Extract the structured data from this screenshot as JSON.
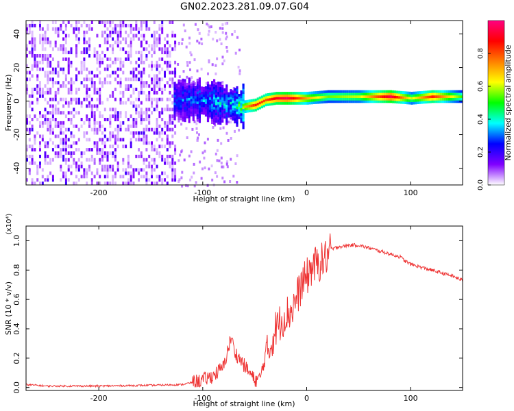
{
  "figure": {
    "title": "GN02.2023.281.09.07.G04"
  },
  "chart_data": [
    {
      "type": "heatmap",
      "xlabel": "Height of straight line (km)",
      "ylabel": "Frequency (Hz)",
      "xlim": [
        -270,
        150
      ],
      "ylim": [
        -50,
        48
      ],
      "xticks": [
        -200,
        -100,
        0,
        100
      ],
      "xtick_labels": [
        "-200",
        "-100",
        "0",
        "100"
      ],
      "yticks": [
        -40,
        -20,
        0,
        20,
        40
      ],
      "ytick_labels": [
        "-40",
        "-20",
        "0",
        "20",
        "40"
      ],
      "colorbar": {
        "label": "Normalized spectral amplitude",
        "range": [
          0,
          1
        ],
        "ticks": [
          0,
          0.2,
          0.4,
          0.6,
          0.8
        ],
        "tick_labels": [
          "0.0",
          "0.2",
          "0.4",
          "0.6",
          "0.8"
        ],
        "colors": [
          "#ffffff",
          "#8000ff",
          "#0000ff",
          "#00ffff",
          "#00ff00",
          "#ffff00",
          "#ff8000",
          "#ff0000",
          "#ff0080"
        ]
      },
      "ridge": {
        "x": [
          -125,
          -100,
          -80,
          -70,
          -60,
          -50,
          -40,
          -30,
          -20,
          0,
          20,
          50,
          80,
          100,
          120,
          150
        ],
        "freq": [
          0,
          0,
          -2,
          -3,
          -4,
          -3,
          0,
          1,
          1,
          1,
          2,
          2,
          2,
          1,
          2,
          2
        ],
        "amplitude": [
          0.35,
          0.4,
          0.45,
          0.5,
          0.7,
          0.85,
          0.8,
          0.9,
          0.95,
          0.7,
          0.55,
          0.6,
          0.95,
          0.6,
          0.85,
          0.5
        ]
      }
    },
    {
      "type": "line",
      "xlabel": "Height of straight line (km)",
      "ylabel": "SNR (10 * v/v)",
      "y_multiplier": "(x10⁴)",
      "xlim": [
        -270,
        150
      ],
      "ylim": [
        -0.02,
        1.1
      ],
      "xticks": [
        -200,
        -100,
        0,
        100
      ],
      "xtick_labels": [
        "-200",
        "-100",
        "0",
        "100"
      ],
      "yticks": [
        0,
        0.2,
        0.4,
        0.6,
        0.8,
        1.0
      ],
      "ytick_labels": [
        "0.0",
        "0.2",
        "0.4",
        "0.6",
        "0.8",
        "1.0"
      ],
      "line_color": "#ee3333",
      "series": [
        {
          "x": [
            -270,
            -250,
            -200,
            -150,
            -120,
            -100,
            -90,
            -80,
            -75,
            -72,
            -70,
            -65,
            -60,
            -55,
            -50,
            -45,
            -40,
            -35,
            -30,
            -25,
            -20,
            -15,
            -10,
            -5,
            0,
            5,
            10,
            15,
            20,
            25,
            30,
            35,
            40,
            50,
            60,
            70,
            80,
            90,
            95,
            100,
            110,
            120,
            130,
            140,
            150
          ],
          "y": [
            0.02,
            0.01,
            0.01,
            0.015,
            0.02,
            0.05,
            0.08,
            0.14,
            0.28,
            0.35,
            0.25,
            0.2,
            0.15,
            0.1,
            0.05,
            0.06,
            0.2,
            0.28,
            0.4,
            0.45,
            0.5,
            0.52,
            0.6,
            0.7,
            0.75,
            0.82,
            0.84,
            0.86,
            0.9,
            0.94,
            0.96,
            0.96,
            0.97,
            0.97,
            0.95,
            0.93,
            0.91,
            0.89,
            0.86,
            0.84,
            0.82,
            0.8,
            0.78,
            0.76,
            0.73
          ]
        }
      ]
    }
  ]
}
